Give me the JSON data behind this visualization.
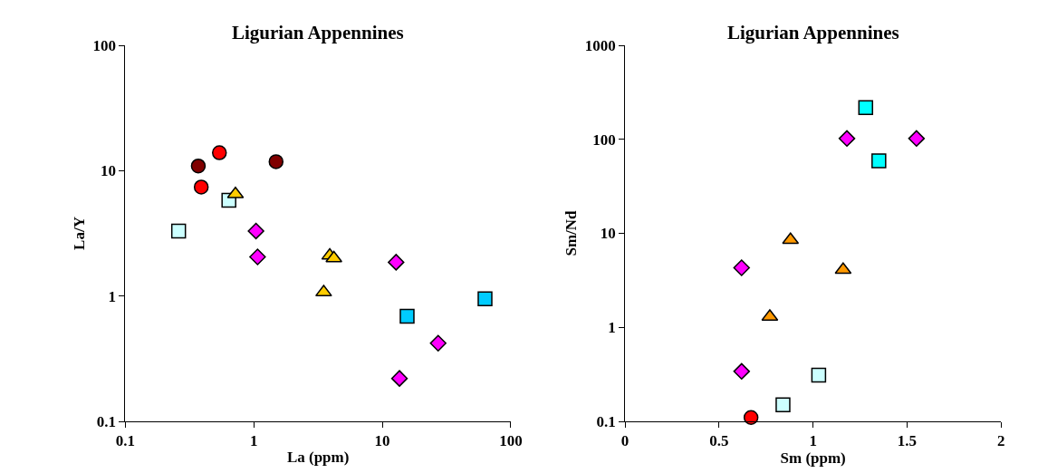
{
  "chart_data": [
    {
      "type": "scatter",
      "title": "Ligurian Appennines",
      "xlabel": "La (ppm)",
      "ylabel": "La/Y",
      "log": "xy",
      "xlim": [
        0.1,
        100
      ],
      "xticks": [
        0.1,
        1,
        10,
        100
      ],
      "ylim": [
        0.1,
        100
      ],
      "yticks": [
        0.1,
        1,
        10,
        100
      ],
      "series": [
        {
          "color": "#800000",
          "marker": "circle",
          "x": [
            0.37,
            1.49
          ],
          "values": [
            10.9,
            11.8
          ]
        },
        {
          "color": "#ff0000",
          "marker": "circle",
          "x": [
            0.54,
            0.39
          ],
          "values": [
            13.9,
            7.4
          ]
        },
        {
          "color": "#ccffff",
          "marker": "square",
          "x": [
            0.26,
            0.64
          ],
          "values": [
            3.3,
            5.8
          ]
        },
        {
          "color": "#ffcc00",
          "marker": "triangle",
          "x": [
            0.72,
            3.9,
            4.2,
            3.5
          ],
          "values": [
            6.5,
            2.1,
            2.0,
            1.07
          ]
        },
        {
          "color": "#ff00ff",
          "marker": "diamond",
          "x": [
            1.04,
            1.07,
            12.8,
            27.2,
            13.6
          ],
          "values": [
            3.3,
            2.05,
            1.86,
            0.42,
            0.22
          ]
        },
        {
          "color": "#00ccff",
          "marker": "square",
          "x": [
            15.6,
            63
          ],
          "values": [
            0.69,
            0.95
          ]
        }
      ]
    },
    {
      "type": "scatter",
      "title": "Ligurian Appennines",
      "xlabel": "Sm (ppm)",
      "ylabel": "Sm/Nd",
      "log": "y",
      "xlim": [
        0,
        2
      ],
      "xticks": [
        0,
        0.5,
        1,
        1.5,
        2
      ],
      "ylim": [
        0.1,
        1000
      ],
      "yticks": [
        0.1,
        1,
        10,
        100,
        1000
      ],
      "series": [
        {
          "color": "#00ffff",
          "marker": "square",
          "x": [
            1.28,
            1.35
          ],
          "values": [
            218,
            59
          ]
        },
        {
          "color": "#ff00ff",
          "marker": "diamond",
          "x": [
            1.18,
            1.55,
            0.62,
            0.62
          ],
          "values": [
            102,
            102,
            4.3,
            0.34
          ]
        },
        {
          "color": "#ff9900",
          "marker": "triangle",
          "x": [
            0.88,
            1.16,
            0.77
          ],
          "values": [
            8.5,
            4.1,
            1.3
          ]
        },
        {
          "color": "#ccffff",
          "marker": "square",
          "x": [
            1.03,
            0.84
          ],
          "values": [
            0.31,
            0.15
          ]
        },
        {
          "color": "#ff0000",
          "marker": "circle",
          "x": [
            0.67
          ],
          "values": [
            0.11
          ]
        }
      ]
    }
  ]
}
